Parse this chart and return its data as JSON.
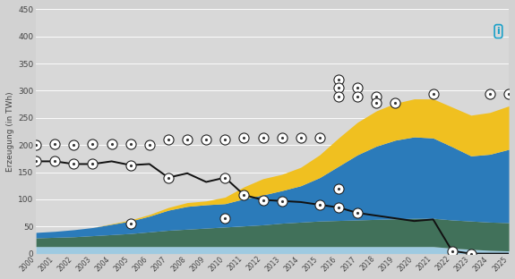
{
  "years": [
    2000,
    2001,
    2002,
    2003,
    2004,
    2005,
    2006,
    2007,
    2008,
    2009,
    2010,
    2011,
    2012,
    2013,
    2014,
    2015,
    2016,
    2017,
    2018,
    2019,
    2020,
    2021,
    2022,
    2023,
    2024,
    2025
  ],
  "nuclear_line": [
    170,
    170,
    165,
    165,
    170,
    163,
    165,
    140,
    148,
    132,
    140,
    108,
    99,
    97,
    95,
    90,
    85,
    75,
    70,
    65,
    60,
    63,
    5,
    0,
    0,
    0
  ],
  "layer_lightblue": [
    13,
    13,
    13,
    13,
    13,
    13,
    13,
    13,
    13,
    13,
    13,
    13,
    13,
    13,
    13,
    13,
    13,
    13,
    13,
    13,
    13,
    13,
    10,
    8,
    6,
    5
  ],
  "layer_green": [
    16,
    17,
    18,
    20,
    22,
    24,
    27,
    30,
    32,
    34,
    36,
    38,
    40,
    43,
    45,
    47,
    48,
    49,
    50,
    51,
    52,
    52,
    52,
    52,
    52,
    52
  ],
  "layer_blue": [
    10,
    11,
    13,
    15,
    19,
    23,
    29,
    37,
    42,
    43,
    43,
    50,
    55,
    60,
    67,
    80,
    100,
    120,
    135,
    145,
    150,
    148,
    135,
    120,
    125,
    135
  ],
  "layer_yellow": [
    0,
    0,
    0,
    0,
    1,
    2,
    3,
    5,
    7,
    7,
    12,
    22,
    30,
    30,
    34,
    42,
    52,
    60,
    65,
    68,
    70,
    72,
    73,
    75,
    77,
    80
  ],
  "fig_color": "#d2d2d2",
  "plot_bg_color": "#d8d8d8",
  "nuclear_line_color": "#111111",
  "color_lightblue": "#9ecae1",
  "color_green": "#41715a",
  "color_blue": "#2b7bba",
  "color_yellow": "#f0c020",
  "ylabel": "Erzeugung (in TWh)",
  "ylim_min": 0,
  "ylim_max": 450,
  "yticks": [
    0,
    50,
    100,
    150,
    200,
    250,
    300,
    350,
    400,
    450
  ],
  "info_color": "#19a0c8",
  "nuc_icon_years": [
    2000,
    2001,
    2002,
    2003,
    2005,
    2007,
    2010,
    2011,
    2012,
    2013,
    2015,
    2016,
    2017,
    2022,
    2023
  ],
  "nuc_icon_vals": [
    170,
    170,
    165,
    165,
    163,
    140,
    140,
    108,
    99,
    97,
    90,
    85,
    75,
    5,
    0
  ],
  "wind_icon_years": [
    2005,
    2010,
    2016
  ],
  "wind_icon_vals": [
    55,
    65,
    120
  ],
  "upper_icon_years": [
    2000,
    2001,
    2002,
    2003,
    2004,
    2005,
    2006,
    2007,
    2008,
    2009,
    2010,
    2011,
    2012,
    2013,
    2014,
    2015,
    2016,
    2016,
    2016,
    2017,
    2017,
    2018,
    2018,
    2019,
    2021,
    2024,
    2025
  ],
  "upper_icon_vals": [
    200,
    202,
    200,
    202,
    202,
    202,
    200,
    210,
    210,
    210,
    210,
    213,
    213,
    213,
    213,
    213,
    320,
    305,
    290,
    305,
    290,
    290,
    278,
    278,
    295,
    295,
    295
  ]
}
